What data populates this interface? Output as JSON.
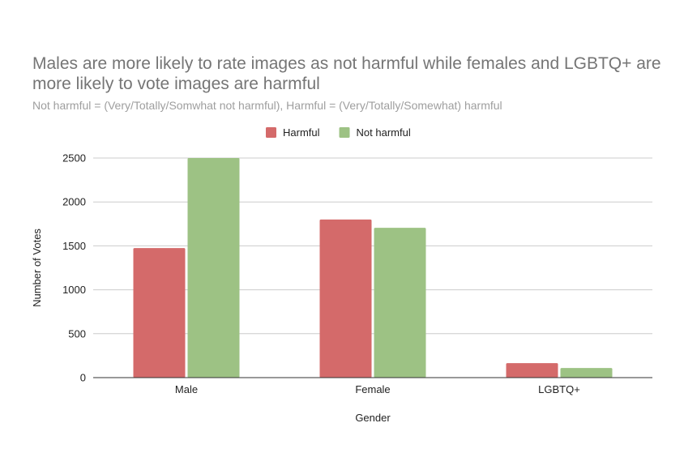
{
  "chart_data": {
    "type": "bar",
    "title": "Males are more likely to rate images as not harmful while females and LGBTQ+ are more likely to vote images are harmful",
    "subtitle": "Not harmful = (Very/Totally/Somwhat not harmful),  Harmful = (Very/Totally/Somewhat) harmful",
    "xlabel": "Gender",
    "ylabel": "Number of Votes",
    "categories": [
      "Male",
      "Female",
      "LGBTQ+"
    ],
    "series": [
      {
        "name": "Harmful",
        "values": [
          1475,
          1800,
          165
        ],
        "color": "#d46a6a"
      },
      {
        "name": "Not harmful",
        "values": [
          2500,
          1705,
          110
        ],
        "color": "#9dc284"
      }
    ],
    "ylim": [
      0,
      2500
    ],
    "yticks": [
      0,
      500,
      1000,
      1500,
      2000,
      2500
    ],
    "grid": true,
    "legend_position": "top-center"
  }
}
